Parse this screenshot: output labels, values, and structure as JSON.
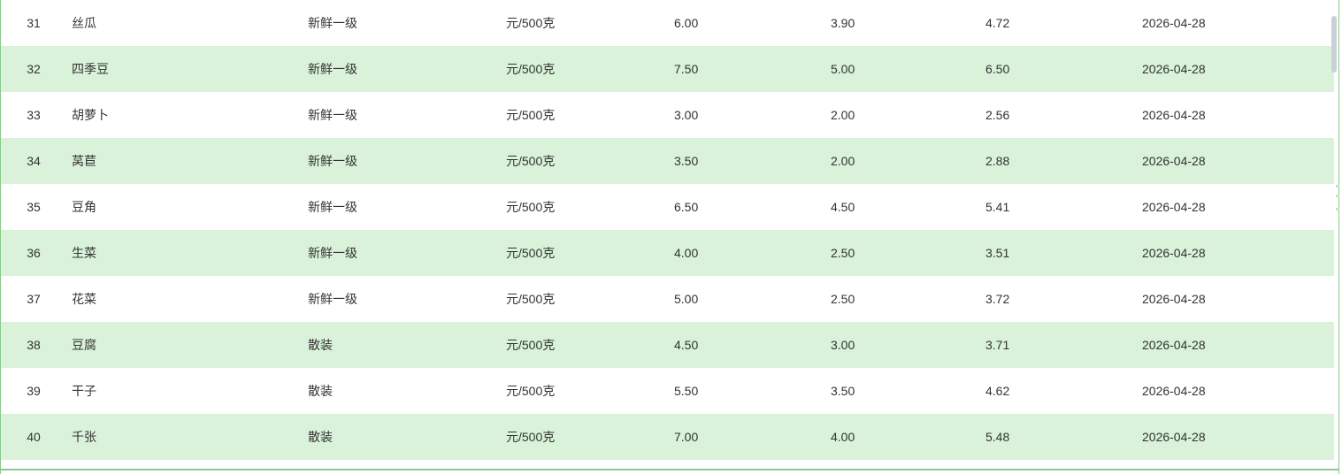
{
  "table": {
    "rows": [
      {
        "index": "31",
        "name": "丝瓜",
        "spec": "新鲜一级",
        "unit": "元/500克",
        "high": "6.00",
        "low": "3.90",
        "avg": "4.72",
        "date": "2026-04-28"
      },
      {
        "index": "32",
        "name": "四季豆",
        "spec": "新鲜一级",
        "unit": "元/500克",
        "high": "7.50",
        "low": "5.00",
        "avg": "6.50",
        "date": "2026-04-28"
      },
      {
        "index": "33",
        "name": "胡萝卜",
        "spec": "新鲜一级",
        "unit": "元/500克",
        "high": "3.00",
        "low": "2.00",
        "avg": "2.56",
        "date": "2026-04-28"
      },
      {
        "index": "34",
        "name": "莴苣",
        "spec": "新鲜一级",
        "unit": "元/500克",
        "high": "3.50",
        "low": "2.00",
        "avg": "2.88",
        "date": "2026-04-28"
      },
      {
        "index": "35",
        "name": "豆角",
        "spec": "新鲜一级",
        "unit": "元/500克",
        "high": "6.50",
        "low": "4.50",
        "avg": "5.41",
        "date": "2026-04-28"
      },
      {
        "index": "36",
        "name": "生菜",
        "spec": "新鲜一级",
        "unit": "元/500克",
        "high": "4.00",
        "low": "2.50",
        "avg": "3.51",
        "date": "2026-04-28"
      },
      {
        "index": "37",
        "name": "花菜",
        "spec": "新鲜一级",
        "unit": "元/500克",
        "high": "5.00",
        "low": "2.50",
        "avg": "3.72",
        "date": "2026-04-28"
      },
      {
        "index": "38",
        "name": "豆腐",
        "spec": "散装",
        "unit": "元/500克",
        "high": "4.50",
        "low": "3.00",
        "avg": "3.71",
        "date": "2026-04-28"
      },
      {
        "index": "39",
        "name": "干子",
        "spec": "散装",
        "unit": "元/500克",
        "high": "5.50",
        "low": "3.50",
        "avg": "4.62",
        "date": "2026-04-28"
      },
      {
        "index": "40",
        "name": "千张",
        "spec": "散装",
        "unit": "元/500克",
        "high": "7.00",
        "low": "4.00",
        "avg": "5.48",
        "date": "2026-04-28"
      }
    ]
  },
  "colors": {
    "row_alternate_bg": "#d9f2d9",
    "row_bg": "#ffffff",
    "table_border": "#8ac88a",
    "text": "#333333",
    "scrollbar_thumb": "#cbd0d8"
  }
}
